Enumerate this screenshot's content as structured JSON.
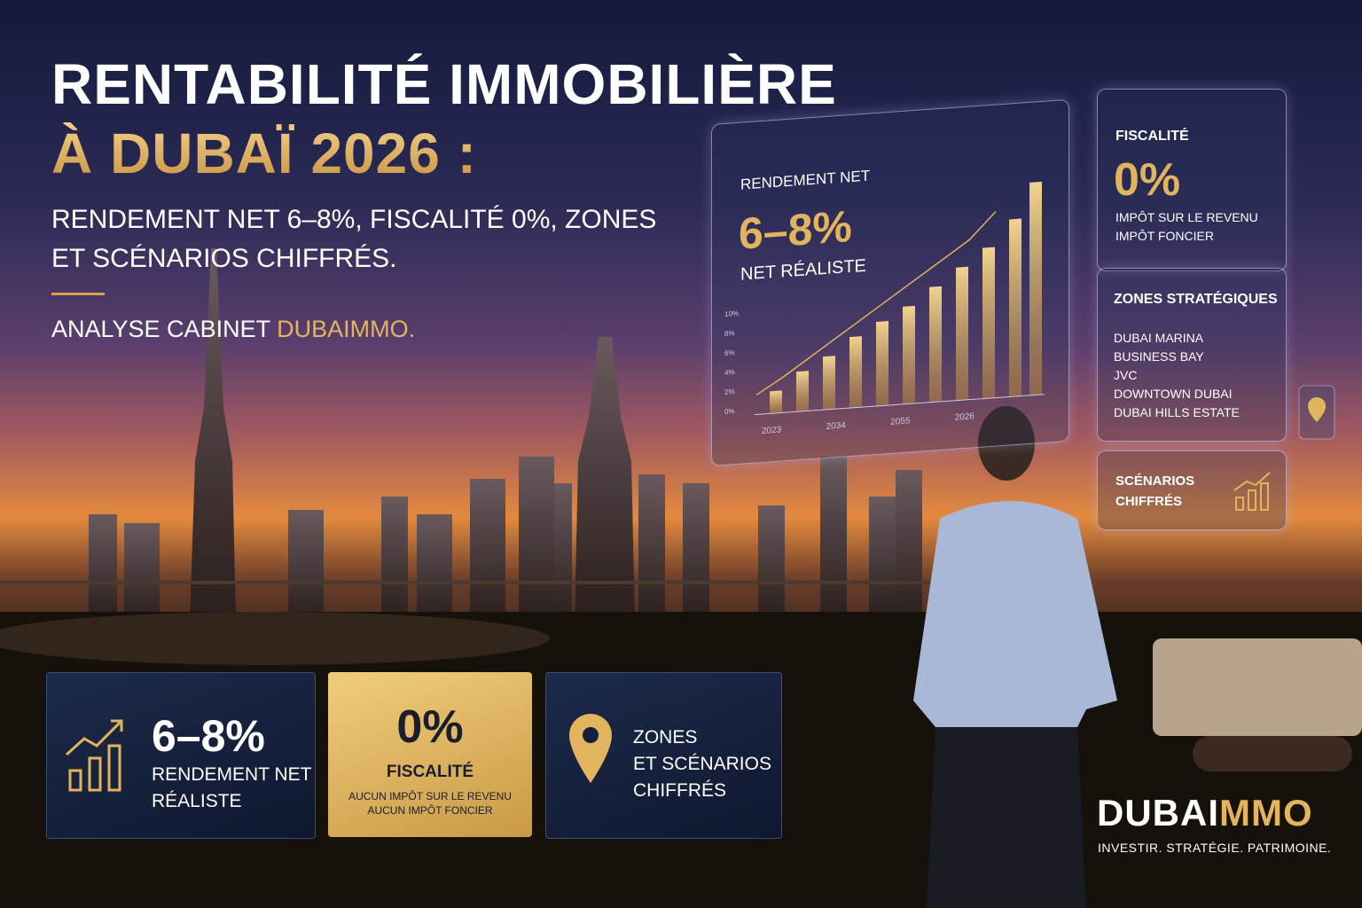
{
  "header": {
    "title_line1": "RENTABILITÉ IMMOBILIÈRE",
    "title_line2": "À DUBAÏ 2026 :",
    "subtitle": "RENDEMENT NET 6–8%, FISCALITÉ 0%, ZONES ET SCÉNARIOS CHIFFRÉS.",
    "byline_prefix": "ANALYSE CABINET",
    "byline_brand": "DUBAIMMO."
  },
  "hologram": {
    "label": "RENDEMENT NET",
    "value": "6–8%",
    "caption": "NET RÉALISTE",
    "yticks": [
      "10%",
      "8%",
      "6%",
      "4%",
      "2%",
      "0%"
    ],
    "xlabels": [
      "2023",
      "2034",
      "2055",
      "2026"
    ]
  },
  "side_panels": {
    "fiscalite": {
      "title": "FISCALITÉ",
      "value": "0%",
      "lines": [
        "IMPÔT SUR LE REVENU",
        "IMPÔT FONCIER"
      ]
    },
    "zones": {
      "title": "ZONES STRATÉGIQUES",
      "items": [
        "DUBAI MARINA",
        "BUSINESS BAY",
        "JVC",
        "DOWNTOWN DUBAI",
        "DUBAI HILLS ESTATE"
      ]
    },
    "scenarios": {
      "lines": [
        "SCÉNARIOS",
        "CHIFFRÉS"
      ]
    }
  },
  "cards": [
    {
      "value": "6–8%",
      "lines": [
        "RENDEMENT NET",
        "RÉALISTE"
      ]
    },
    {
      "value": "0%",
      "title": "FISCALITÉ",
      "lines": [
        "AUCUN IMPÔT SUR LE REVENU",
        "AUCUN IMPÔT FONCIER"
      ]
    },
    {
      "lines": [
        "ZONES",
        "ET SCÉNARIOS",
        "CHIFFRÉS"
      ]
    }
  ],
  "brand": {
    "name_a": "DUBAI",
    "name_b": "MMO",
    "tagline": "INVESTIR. STRATÉGIE. PATRIMOINE."
  }
}
